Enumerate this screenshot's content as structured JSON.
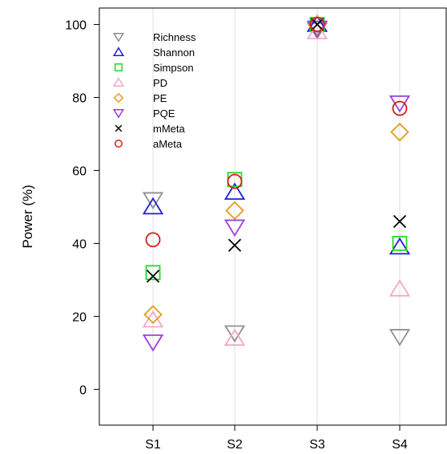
{
  "chart_data": {
    "type": "scatter",
    "ylabel": "Power (%)",
    "xlabel": "",
    "categories": [
      "S1",
      "S2",
      "S3",
      "S4"
    ],
    "ylim": [
      -9.8,
      104.5
    ],
    "yticks": [
      0,
      20,
      40,
      60,
      80,
      100
    ],
    "grid": "vertical lines at each category",
    "legend_position": "top-left",
    "series": [
      {
        "name": "Richness",
        "marker": "triangle-down",
        "color": "#909090",
        "values": [
          52,
          15.5,
          98.5,
          14.5
        ]
      },
      {
        "name": "Shannon",
        "marker": "triangle-up",
        "color": "#1f1fd6",
        "values": [
          50,
          54,
          100,
          39
        ]
      },
      {
        "name": "Simpson",
        "marker": "square",
        "color": "#22dd22",
        "values": [
          32,
          57.5,
          100,
          40
        ]
      },
      {
        "name": "PD",
        "marker": "triangle-up",
        "color": "#f2a8c4",
        "values": [
          19,
          14,
          98,
          27.5
        ]
      },
      {
        "name": "PE",
        "marker": "diamond",
        "color": "#e39b1f",
        "values": [
          20.5,
          49,
          100,
          70.5
        ]
      },
      {
        "name": "PQE",
        "marker": "triangle-down",
        "color": "#9a3fe0",
        "values": [
          13,
          44.5,
          99,
          78.5
        ]
      },
      {
        "name": "mMeta",
        "marker": "cross",
        "color": "#000000",
        "values": [
          31,
          39.5,
          100,
          46
        ]
      },
      {
        "name": "aMeta",
        "marker": "circle",
        "color": "#d81b1b",
        "values": [
          41,
          57,
          100,
          77
        ]
      }
    ]
  }
}
